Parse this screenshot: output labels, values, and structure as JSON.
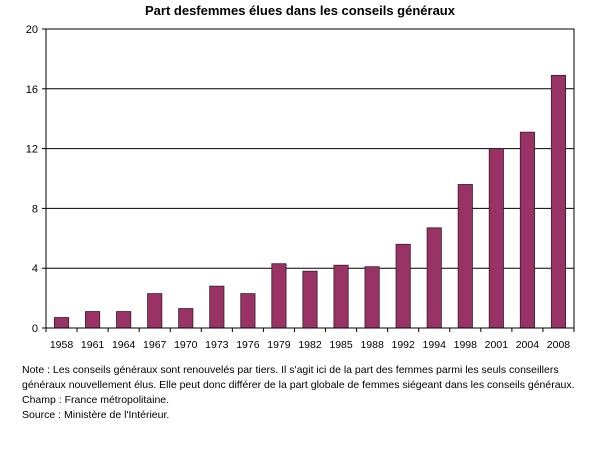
{
  "chart_data": {
    "type": "bar",
    "title": "Part desfemmes élues dans les conseils généraux",
    "xlabel": "",
    "ylabel": "",
    "categories": [
      "1958",
      "1961",
      "1964",
      "1967",
      "1970",
      "1973",
      "1976",
      "1979",
      "1982",
      "1985",
      "1988",
      "1992",
      "1994",
      "1998",
      "2001",
      "2004",
      "2008"
    ],
    "values": [
      0.7,
      1.1,
      1.1,
      2.3,
      1.3,
      2.8,
      2.3,
      4.3,
      3.8,
      4.2,
      4.1,
      5.6,
      6.7,
      9.6,
      12.0,
      13.1,
      16.9
    ],
    "ylim": [
      0,
      20
    ],
    "yticks": [
      0,
      4,
      8,
      12,
      16,
      20
    ],
    "grid": true,
    "bar_color": "#993366"
  },
  "notes": {
    "note": "Note : Les conseils généraux sont renouvelés par tiers. Il s'agit ici de la part des femmes parmi les seuls conseillers généraux nouvellement élus. Elle peut donc différer de la part globale de femmes siégeant dans les conseils généraux.",
    "champ": "Champ : France métropolitaine.",
    "source": "Source : Ministère de l'Intérieur."
  }
}
